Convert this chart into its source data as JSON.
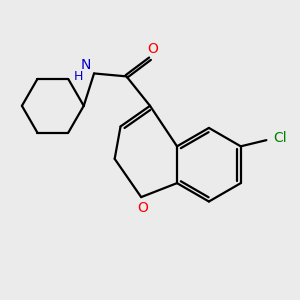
{
  "background_color": "#ebebeb",
  "bond_color": "#000000",
  "atom_colors": {
    "O": "#ff0000",
    "N": "#0000cc",
    "Cl": "#008000",
    "C": "#000000"
  },
  "figsize": [
    3.0,
    3.0
  ],
  "dpi": 100
}
